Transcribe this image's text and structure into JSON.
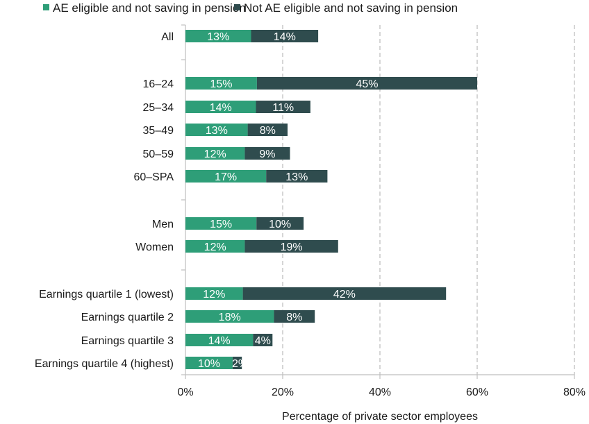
{
  "chart_data": {
    "type": "bar",
    "orientation": "horizontal",
    "stacked": true,
    "xlabel": "Percentage of private sector employees",
    "xlim": [
      0,
      80
    ],
    "xticks": [
      0,
      20,
      40,
      60,
      80
    ],
    "xtick_labels": [
      "0%",
      "20%",
      "40%",
      "60%",
      "80%"
    ],
    "grid": "vertical dashed",
    "legend_position": "top",
    "categories": [
      "All",
      "16–24",
      "25–34",
      "35–49",
      "50–59",
      "60–SPA",
      "Men",
      "Women",
      "Earnings quartile 1 (lowest)",
      "Earnings quartile 2",
      "Earnings quartile 3",
      "Earnings quartile 4 (highest)"
    ],
    "series": [
      {
        "name": "AE eligible and not saving in pension",
        "color": "#2e9e78",
        "values": [
          13.5,
          14.7,
          14.5,
          12.8,
          12.2,
          16.6,
          14.6,
          12.2,
          11.8,
          18.2,
          13.9,
          9.7
        ],
        "labels": [
          "13%",
          "15%",
          "14%",
          "13%",
          "12%",
          "17%",
          "15%",
          "12%",
          "12%",
          "18%",
          "14%",
          "10%"
        ]
      },
      {
        "name": "Not AE eligible and not saving in pension",
        "color": "#2f4c4e",
        "values": [
          13.8,
          45.3,
          11.2,
          8.2,
          9.3,
          12.6,
          9.7,
          19.2,
          41.8,
          8.4,
          4.0,
          1.9
        ],
        "labels": [
          "14%",
          "45%",
          "11%",
          "8%",
          "9%",
          "13%",
          "10%",
          "19%",
          "42%",
          "8%",
          "4%",
          "2%"
        ]
      }
    ]
  }
}
